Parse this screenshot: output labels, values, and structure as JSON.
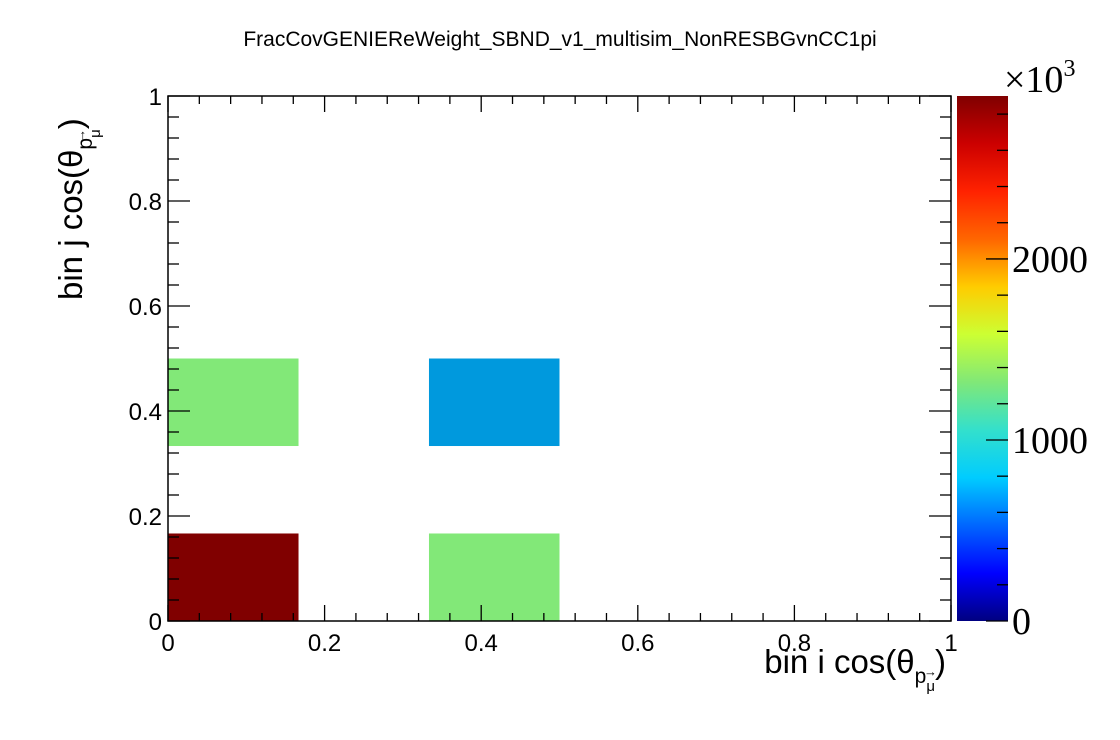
{
  "chart_data": {
    "type": "heatmap",
    "title": "FracCovGENIEReWeight_SBND_v1_multisim_NonRESBGvnCC1pi",
    "xlabel": {
      "main": "bin i cos(θ",
      "sub_vec": "p",
      "sub_mu": "μ",
      "close": ")"
    },
    "ylabel": {
      "main": "bin j cos(θ",
      "sub_vec": "p",
      "sub_mu": "μ",
      "close": ")"
    },
    "xlim": [
      0,
      1
    ],
    "ylim": [
      0,
      1
    ],
    "xticks": [
      {
        "value": 0,
        "label": "0"
      },
      {
        "value": 0.2,
        "label": "0.2"
      },
      {
        "value": 0.4,
        "label": "0.4"
      },
      {
        "value": 0.6,
        "label": "0.6"
      },
      {
        "value": 0.8,
        "label": "0.8"
      },
      {
        "value": 1,
        "label": "1"
      }
    ],
    "yticks": [
      {
        "value": 0,
        "label": "0"
      },
      {
        "value": 0.2,
        "label": "0.2"
      },
      {
        "value": 0.4,
        "label": "0.4"
      },
      {
        "value": 0.6,
        "label": "0.6"
      },
      {
        "value": 0.8,
        "label": "0.8"
      },
      {
        "value": 1,
        "label": "1"
      }
    ],
    "bins_x": 6,
    "bins_y": 6,
    "cells": [
      {
        "x0": 0.0,
        "x1": 0.1667,
        "y0": 0.0,
        "y1": 0.1667,
        "value": 2900,
        "color": "#800000"
      },
      {
        "x0": 0.3333,
        "x1": 0.5,
        "y0": 0.0,
        "y1": 0.1667,
        "value": 1600,
        "color": "#82e878"
      },
      {
        "x0": 0.0,
        "x1": 0.1667,
        "y0": 0.3333,
        "y1": 0.5,
        "value": 1600,
        "color": "#82e878"
      },
      {
        "x0": 0.3333,
        "x1": 0.5,
        "y0": 0.3333,
        "y1": 0.5,
        "value": 750,
        "color": "#0099dd"
      }
    ],
    "colorbar": {
      "min": 0,
      "max": 2900,
      "exponent_label": "×10",
      "exponent_power": "3",
      "ticks": [
        {
          "value": 0,
          "label": "0"
        },
        {
          "value": 1000,
          "label": "1000"
        },
        {
          "value": 2000,
          "label": "2000"
        }
      ],
      "colors": [
        "#000080",
        "#0000ff",
        "#0066ff",
        "#00ccff",
        "#33e0cc",
        "#80e878",
        "#ccff33",
        "#ffcc00",
        "#ff6600",
        "#ff2200",
        "#cc0000",
        "#800000"
      ]
    },
    "grid": false,
    "legend": "none"
  }
}
